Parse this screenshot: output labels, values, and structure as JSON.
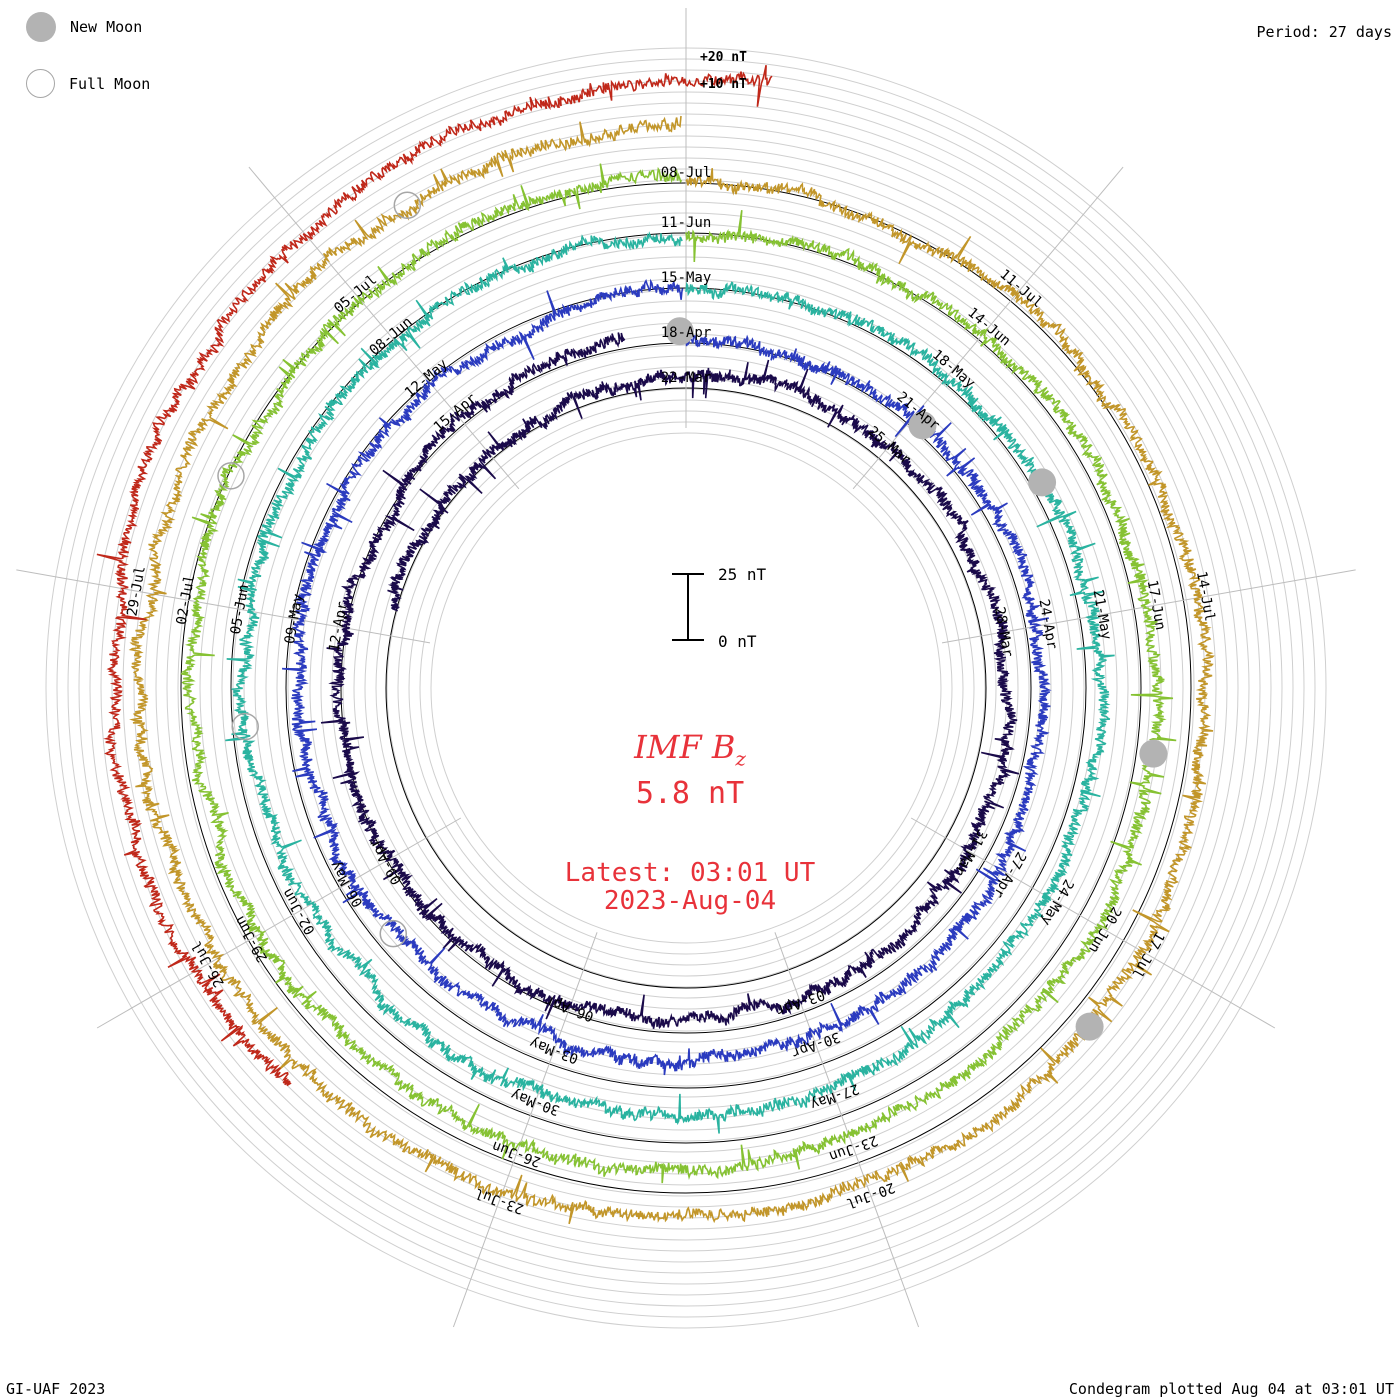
{
  "chart_data": {
    "type": "line",
    "style": "spiral condegram",
    "title": "IMF B",
    "title_subscript": "z",
    "current_value": "5.8 nT",
    "latest_time": "Latest: 03:01 UT",
    "latest_date": "2023-Aug-04",
    "period": "Period: 27 days",
    "scale_bar": {
      "top_label": "25 nT",
      "bottom_label": "0 nT",
      "span_nT": 25
    },
    "offset_labels": [
      "+20 nT",
      "+10 nT"
    ],
    "legend": {
      "new_moon": "New Moon",
      "full_moon": "Full Moon"
    },
    "footer_left": "GI-UAF 2023",
    "footer_right": "Condegram plotted Aug 04 at 03:01 UT",
    "grid": true,
    "series": [
      {
        "name": "",
        "color": "#1a0a4a",
        "start_angle_deg": 195,
        "ticks": [
          {
            "label": "22-Mar",
            "angle_deg": 270
          },
          {
            "label": "25-Mar",
            "angle_deg": 310
          },
          {
            "label": "28-Mar",
            "angle_deg": 350
          },
          {
            "label": "31-Mar",
            "angle_deg": 30
          },
          {
            "label": "03-Apr",
            "angle_deg": 70
          },
          {
            "label": "06-Apr",
            "angle_deg": 110
          },
          {
            "label": "09-Apr",
            "angle_deg": 150
          },
          {
            "label": "12-Apr",
            "angle_deg": 190
          },
          {
            "label": "15-Apr",
            "angle_deg": 230
          }
        ],
        "events": [
          {
            "type": "new",
            "angle_deg": 269
          }
        ]
      },
      {
        "name": "",
        "color": "#2b3bbf",
        "start_angle_deg": 270,
        "ticks": [
          {
            "label": "18-Apr",
            "angle_deg": 270
          },
          {
            "label": "21-Apr",
            "angle_deg": 310
          },
          {
            "label": "24-Apr",
            "angle_deg": 350
          },
          {
            "label": "27-Apr",
            "angle_deg": 30
          },
          {
            "label": "30-Apr",
            "angle_deg": 70
          },
          {
            "label": "03-May",
            "angle_deg": 110
          },
          {
            "label": "06-May",
            "angle_deg": 150
          },
          {
            "label": "09-May",
            "angle_deg": 190
          },
          {
            "label": "12-May",
            "angle_deg": 230
          }
        ],
        "events": [
          {
            "type": "new",
            "angle_deg": 312
          },
          {
            "type": "full",
            "angle_deg": 140
          }
        ]
      },
      {
        "name": "",
        "color": "#2ab3a0",
        "start_angle_deg": 270,
        "ticks": [
          {
            "label": "15-May",
            "angle_deg": 270
          },
          {
            "label": "18-May",
            "angle_deg": 310
          },
          {
            "label": "21-May",
            "angle_deg": 350
          },
          {
            "label": "24-May",
            "angle_deg": 30
          },
          {
            "label": "27-May",
            "angle_deg": 70
          },
          {
            "label": "30-May",
            "angle_deg": 110
          },
          {
            "label": "02-Jun",
            "angle_deg": 150
          },
          {
            "label": "05-Jun",
            "angle_deg": 190
          },
          {
            "label": "08-Jun",
            "angle_deg": 230
          }
        ],
        "events": [
          {
            "type": "new",
            "angle_deg": 330
          },
          {
            "type": "full",
            "angle_deg": 175
          }
        ]
      },
      {
        "name": "",
        "color": "#86c233",
        "start_angle_deg": 270,
        "ticks": [
          {
            "label": "11-Jun",
            "angle_deg": 270
          },
          {
            "label": "14-Jun",
            "angle_deg": 310
          },
          {
            "label": "17-Jun",
            "angle_deg": 350
          },
          {
            "label": "20-Jun",
            "angle_deg": 30
          },
          {
            "label": "23-Jun",
            "angle_deg": 70
          },
          {
            "label": "26-Jun",
            "angle_deg": 110
          },
          {
            "label": "29-Jun",
            "angle_deg": 150
          },
          {
            "label": "02-Jul",
            "angle_deg": 190
          },
          {
            "label": "05-Jul",
            "angle_deg": 230
          }
        ],
        "events": [
          {
            "type": "new",
            "angle_deg": 8
          },
          {
            "type": "full",
            "angle_deg": 205
          }
        ]
      },
      {
        "name": "",
        "color": "#c2962a",
        "start_angle_deg": 270,
        "ticks": [
          {
            "label": "08-Jul",
            "angle_deg": 270
          },
          {
            "label": "11-Jul",
            "angle_deg": 310
          },
          {
            "label": "14-Jul",
            "angle_deg": 350
          },
          {
            "label": "17-Jul",
            "angle_deg": 30
          },
          {
            "label": "20-Jul",
            "angle_deg": 70
          },
          {
            "label": "23-Jul",
            "angle_deg": 110
          },
          {
            "label": "26-Jul",
            "angle_deg": 150
          },
          {
            "label": "29-Jul",
            "angle_deg": 190
          }
        ],
        "events": [
          {
            "type": "new",
            "angle_deg": 40
          },
          {
            "type": "full",
            "angle_deg": 240
          }
        ]
      },
      {
        "name": "",
        "color": "#c0281a",
        "start_angle_deg": 190,
        "ticks": [],
        "events": []
      }
    ]
  }
}
